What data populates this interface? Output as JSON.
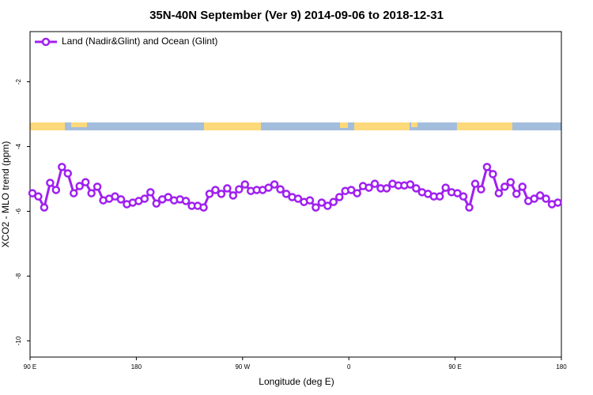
{
  "chart_data": {
    "type": "line",
    "title": "35N-40N September (Ver 9)   2014-09-06 to 2018-12-31",
    "x_label": "Longitude (deg E)",
    "y_label": "XCO2 - MLO trend (ppm)",
    "xlim": [
      90,
      540
    ],
    "xticks": [
      {
        "value": 90,
        "label": "90 E"
      },
      {
        "value": 180,
        "label": "180"
      },
      {
        "value": 270,
        "label": "90 W"
      },
      {
        "value": 360,
        "label": "0"
      },
      {
        "value": 450,
        "label": "90 E"
      },
      {
        "value": 540,
        "label": "180"
      }
    ],
    "ylim": [
      -10.5,
      -0.45
    ],
    "yticks": [
      -2,
      -4,
      -6,
      -8,
      -10
    ],
    "legend": "upper left",
    "x": [
      92,
      97,
      102,
      107,
      112,
      117,
      122,
      127,
      132,
      137,
      142,
      147,
      152,
      157,
      162,
      167,
      172,
      177,
      182,
      187,
      192,
      197,
      202,
      207,
      212,
      217,
      222,
      227,
      232,
      237,
      242,
      247,
      252,
      257,
      262,
      267,
      272,
      277,
      282,
      287,
      292,
      297,
      302,
      307,
      312,
      317,
      322,
      327,
      332,
      337,
      342,
      347,
      352,
      357,
      362,
      367,
      372,
      377,
      382,
      387,
      392,
      397,
      402,
      407,
      412,
      417,
      422,
      427,
      432,
      437,
      442,
      447,
      452,
      457,
      462,
      467,
      472,
      477,
      482,
      487,
      492,
      497,
      502,
      507,
      512,
      517,
      522,
      527,
      532,
      537
    ],
    "series": [
      {
        "name": "Land (Nadir&Glint) and Ocean (Glint)",
        "color": "#a020f0",
        "values": [
          -5.44,
          -5.54,
          -5.88,
          -5.12,
          -5.34,
          -4.63,
          -4.83,
          -5.44,
          -5.22,
          -5.1,
          -5.44,
          -5.24,
          -5.66,
          -5.61,
          -5.54,
          -5.63,
          -5.78,
          -5.73,
          -5.68,
          -5.61,
          -5.41,
          -5.76,
          -5.63,
          -5.56,
          -5.66,
          -5.63,
          -5.68,
          -5.83,
          -5.83,
          -5.88,
          -5.46,
          -5.34,
          -5.46,
          -5.29,
          -5.51,
          -5.32,
          -5.17,
          -5.37,
          -5.34,
          -5.34,
          -5.27,
          -5.17,
          -5.32,
          -5.46,
          -5.56,
          -5.61,
          -5.71,
          -5.66,
          -5.88,
          -5.73,
          -5.83,
          -5.71,
          -5.56,
          -5.37,
          -5.34,
          -5.44,
          -5.22,
          -5.27,
          -5.15,
          -5.29,
          -5.29,
          -5.15,
          -5.2,
          -5.2,
          -5.17,
          -5.29,
          -5.41,
          -5.46,
          -5.54,
          -5.54,
          -5.27,
          -5.41,
          -5.44,
          -5.54,
          -5.88,
          -5.15,
          -5.32,
          -4.63,
          -4.85,
          -5.44,
          -5.24,
          -5.1,
          -5.46,
          -5.24,
          -5.68,
          -5.61,
          -5.51,
          -5.61,
          -5.78,
          -5.73
        ]
      }
    ]
  }
}
